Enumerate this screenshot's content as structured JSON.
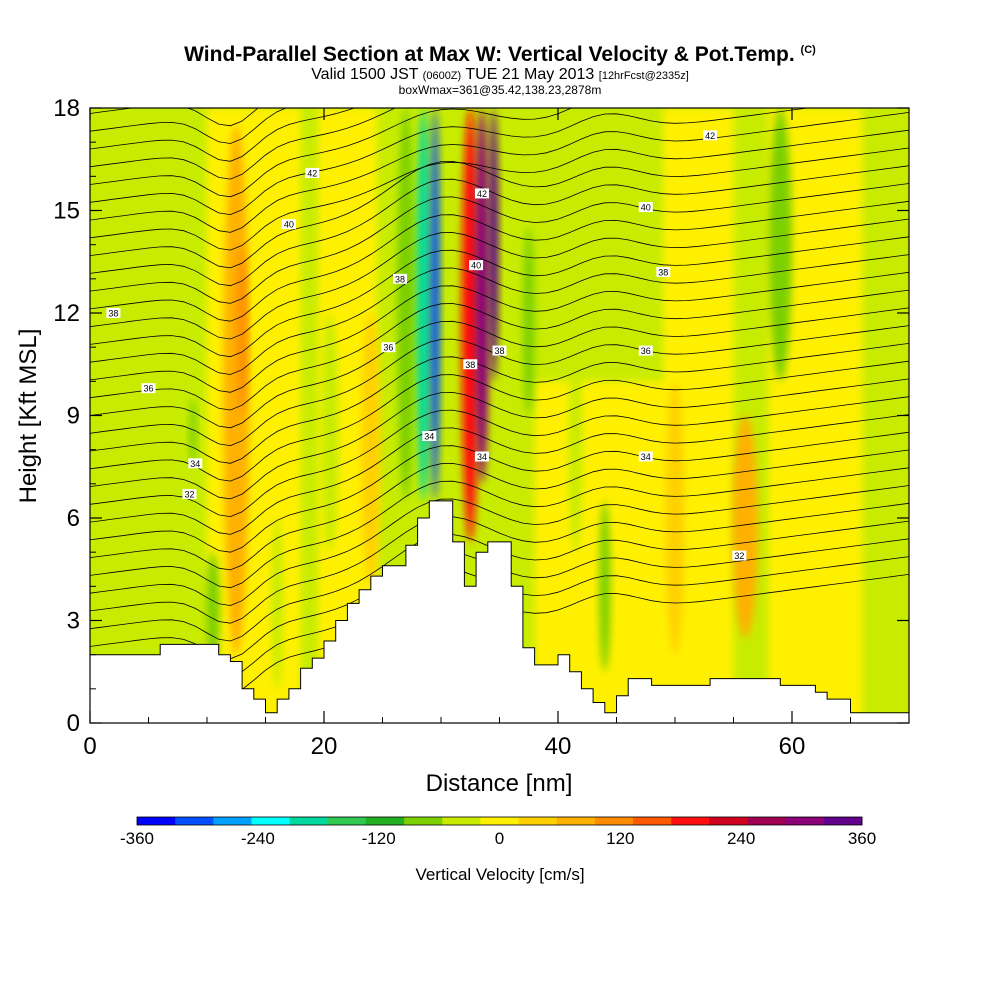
{
  "chart_data": {
    "type": "heatmap",
    "title": "Wind-Parallel Section at Max W: Vertical Velocity & Pot.Temp.",
    "title_mark": "(C)",
    "subtitle_main_a": "Valid 1500 JST",
    "subtitle_small_a": "(0600Z)",
    "subtitle_main_b": "TUE 21 May 2013",
    "subtitle_small_b": "[12hrFcst@2335z]",
    "subtitle2": "boxWmax=361@35.42,138.23,2878m",
    "xlabel": "Distance [nm]",
    "ylabel": "Height [Kft MSL]",
    "xlim": [
      0,
      70
    ],
    "ylim": [
      0,
      18
    ],
    "x_ticks": [
      0,
      20,
      40,
      60
    ],
    "y_ticks": [
      0,
      3,
      6,
      9,
      12,
      15,
      18
    ],
    "colorbar": {
      "label": "Vertical Velocity [cm/s]",
      "ticks": [
        -360,
        -240,
        -120,
        0,
        120,
        240,
        360
      ],
      "colors": [
        "#0000ff",
        "#0050ff",
        "#00a0ff",
        "#00ffff",
        "#00d8a0",
        "#30c850",
        "#20b020",
        "#7cd000",
        "#c8ec00",
        "#fff000",
        "#ffd000",
        "#ffb000",
        "#ff8c00",
        "#ff5a00",
        "#ff1010",
        "#d00020",
        "#a00050",
        "#8c0078",
        "#60008c"
      ]
    },
    "terrain": {
      "x": [
        0,
        5,
        6,
        10,
        11,
        12,
        13,
        14,
        15,
        16,
        17,
        18,
        19,
        20,
        21,
        22,
        23,
        24,
        25,
        26,
        27,
        28,
        29,
        30,
        31,
        32,
        33,
        34,
        35,
        36,
        37,
        38,
        39,
        40,
        41,
        42,
        43,
        44,
        45,
        46,
        47,
        48,
        49,
        50,
        51,
        52,
        53,
        54,
        55,
        56,
        57,
        58,
        59,
        60,
        61,
        62,
        63,
        64,
        65,
        66,
        67,
        68,
        69,
        70
      ],
      "height": [
        2.0,
        2.0,
        2.3,
        2.3,
        2.0,
        1.8,
        1.0,
        0.7,
        0.3,
        0.7,
        1.0,
        1.6,
        1.9,
        2.4,
        3.0,
        3.5,
        3.9,
        4.3,
        4.6,
        4.6,
        5.2,
        6.0,
        6.5,
        6.5,
        5.3,
        4.0,
        5.0,
        5.3,
        5.3,
        4.0,
        2.2,
        1.7,
        1.7,
        2.0,
        1.5,
        1.0,
        0.6,
        0.3,
        0.8,
        1.3,
        1.3,
        1.1,
        1.1,
        1.1,
        1.1,
        1.1,
        1.3,
        1.3,
        1.3,
        1.3,
        1.3,
        1.3,
        1.1,
        1.1,
        1.1,
        0.9,
        0.7,
        0.7,
        0.3,
        0.3,
        0.3,
        0.3,
        0.3,
        0.3
      ]
    },
    "velocity_features": [
      {
        "value": 60,
        "x": 12.5,
        "y0": 2,
        "y1": 17.5,
        "width": 2.2
      },
      {
        "value": 120,
        "x": 13.0,
        "y0": 9,
        "y1": 14,
        "width": 0.8
      },
      {
        "value": -60,
        "x": 10.5,
        "y0": 1.5,
        "y1": 5,
        "width": 1.2
      },
      {
        "value": -60,
        "x": 8.8,
        "y0": 7.5,
        "y1": 9.5,
        "width": 0.6
      },
      {
        "value": 30,
        "x": 24.0,
        "y0": 4,
        "y1": 12,
        "width": 1.6
      },
      {
        "value": -30,
        "x": 20.5,
        "y0": 5,
        "y1": 12,
        "width": 1.5
      },
      {
        "value": -60,
        "x": 27.0,
        "y0": 6.5,
        "y1": 18,
        "width": 1.5
      },
      {
        "value": -180,
        "x": 28.5,
        "y0": 6.5,
        "y1": 18,
        "width": 1.2
      },
      {
        "value": -300,
        "x": 29.5,
        "y0": 6.5,
        "y1": 18,
        "width": 0.8
      },
      {
        "value": 180,
        "x": 32.5,
        "y0": 5.3,
        "y1": 18,
        "width": 1.5
      },
      {
        "value": 300,
        "x": 33.5,
        "y0": 7,
        "y1": 18,
        "width": 1.2
      },
      {
        "value": 360,
        "x": 34.5,
        "y0": 10,
        "y1": 18,
        "width": 0.8
      },
      {
        "value": -90,
        "x": 37.5,
        "y0": 9,
        "y1": 14.5,
        "width": 1.0
      },
      {
        "value": -30,
        "x": 41.5,
        "y0": 5,
        "y1": 11,
        "width": 1.2
      },
      {
        "value": -90,
        "x": 44.0,
        "y0": 1.5,
        "y1": 6.5,
        "width": 1.0
      },
      {
        "value": 90,
        "x": 56.0,
        "y0": 2.5,
        "y1": 9,
        "width": 2.2
      },
      {
        "value": 30,
        "x": 50.0,
        "y0": 2,
        "y1": 10,
        "width": 1.6
      },
      {
        "value": -90,
        "x": 59.0,
        "y0": 10,
        "y1": 18,
        "width": 2.0
      },
      {
        "value": -30,
        "x": 69.0,
        "y0": 0.5,
        "y1": 4,
        "width": 1.5
      },
      {
        "value": -30,
        "x": 16.0,
        "y0": 1,
        "y1": 6,
        "width": 1.0
      }
    ],
    "isentrope_labels": [
      {
        "text": "42",
        "x": 19,
        "y": 16.1
      },
      {
        "text": "40",
        "x": 17,
        "y": 14.6
      },
      {
        "text": "38",
        "x": 2,
        "y": 12.0
      },
      {
        "text": "36",
        "x": 5,
        "y": 9.8
      },
      {
        "text": "34",
        "x": 9,
        "y": 7.6
      },
      {
        "text": "32",
        "x": 8.5,
        "y": 6.7
      },
      {
        "text": "38",
        "x": 26.5,
        "y": 13.0
      },
      {
        "text": "36",
        "x": 25.5,
        "y": 11.0
      },
      {
        "text": "34",
        "x": 29.0,
        "y": 8.4
      },
      {
        "text": "42",
        "x": 33.5,
        "y": 15.5
      },
      {
        "text": "40",
        "x": 33.0,
        "y": 13.4
      },
      {
        "text": "38",
        "x": 32.5,
        "y": 10.5
      },
      {
        "text": "38",
        "x": 35.0,
        "y": 10.9
      },
      {
        "text": "34",
        "x": 33.5,
        "y": 7.8
      },
      {
        "text": "42",
        "x": 53.0,
        "y": 17.2
      },
      {
        "text": "40",
        "x": 47.5,
        "y": 15.1
      },
      {
        "text": "38",
        "x": 49.0,
        "y": 13.2
      },
      {
        "text": "36",
        "x": 47.5,
        "y": 10.9
      },
      {
        "text": "34",
        "x": 47.5,
        "y": 7.8
      },
      {
        "text": "32",
        "x": 55.5,
        "y": 4.9
      }
    ]
  }
}
